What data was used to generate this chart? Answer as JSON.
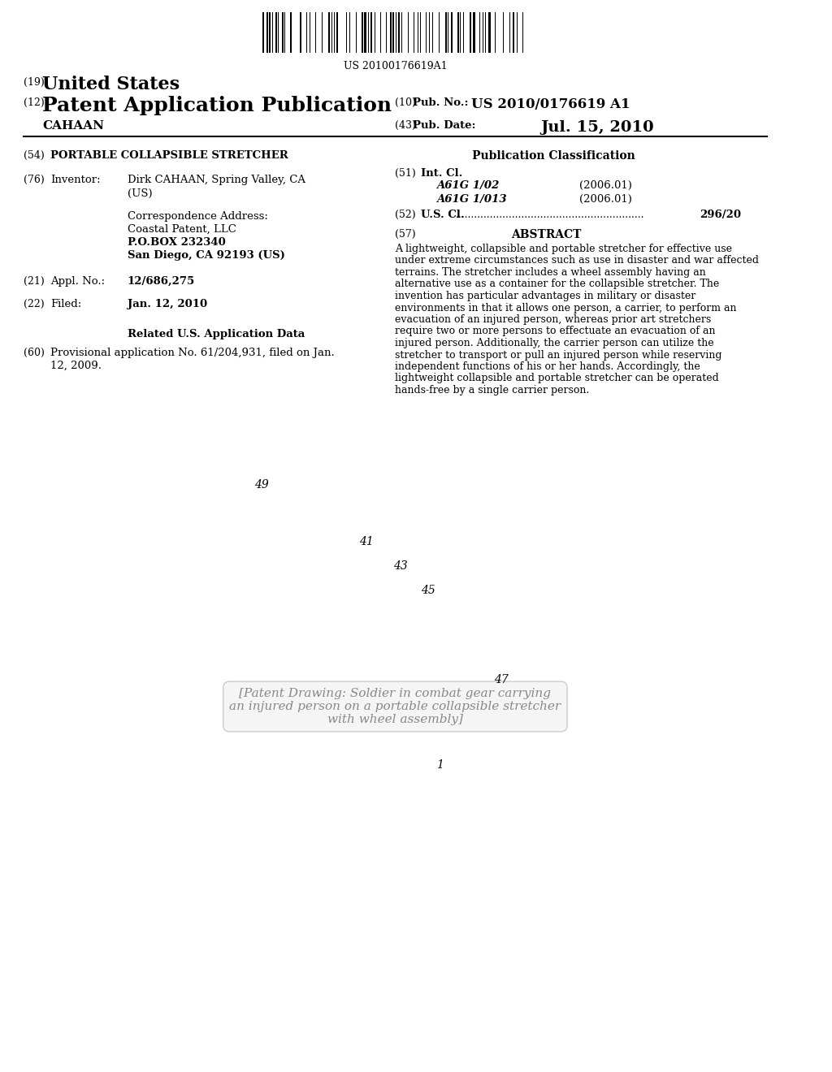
{
  "background_color": "#ffffff",
  "barcode_text": "US 20100176619A1",
  "header": {
    "label19": "(19)",
    "us_text": "United States",
    "label12": "(12)",
    "patent_text": "Patent Application Publication",
    "inventor_name": "CAHAAN",
    "label10": "(10)",
    "pub_no_label": "Pub. No.:",
    "pub_no_value": "US 2010/0176619 A1",
    "label43": "(43)",
    "pub_date_label": "Pub. Date:",
    "pub_date_value": "Jul. 15, 2010"
  },
  "left_col": {
    "label54": "(54)",
    "title": "PORTABLE COLLAPSIBLE STRETCHER",
    "label76": "(76)",
    "inventor_label": "Inventor:",
    "inventor_value": "Dirk CAHAAN, Spring Valley, CA\n(US)",
    "corr_address_label": "Correspondence Address:",
    "corr_address_lines": [
      "Coastal Patent, LLC",
      "P.O.BOX 232340",
      "San Diego, CA 92193 (US)"
    ],
    "label21": "(21)",
    "appl_label": "Appl. No.:",
    "appl_value": "12/686,275",
    "label22": "(22)",
    "filed_label": "Filed:",
    "filed_value": "Jan. 12, 2010",
    "related_title": "Related U.S. Application Data",
    "label60": "(60)",
    "provisional_text": "Provisional application No. 61/204,931, filed on Jan.\n12, 2009."
  },
  "right_col": {
    "pub_class_title": "Publication Classification",
    "label51": "(51)",
    "int_cl_label": "Int. Cl.",
    "int_cl_entries": [
      [
        "A61G 1/02",
        "(2006.01)"
      ],
      [
        "A61G 1/013",
        "(2006.01)"
      ]
    ],
    "label52": "(52)",
    "us_cl_label": "U.S. Cl.",
    "us_cl_dots": "............................................................",
    "us_cl_value": "296/20",
    "label57": "(57)",
    "abstract_title": "ABSTRACT",
    "abstract_text": "A lightweight, collapsible and portable stretcher for effective use under extreme circumstances such as use in disaster and war affected terrains. The stretcher includes a wheel assembly having an alternative use as a container for the collapsible stretcher. The invention has particular advantages in military or disaster environments in that it allows one person, a carrier, to perform an evacuation of an injured person, whereas prior art stretchers require two or more persons to effectuate an evacuation of an injured person. Additionally, the carrier person can utilize the stretcher to transport or pull an injured person while reserving independent functions of his or her hands. Accordingly, the lightweight collapsible and portable stretcher can be operated hands-free by a single carrier person."
  },
  "figure_labels": {
    "label49": "49",
    "label41": "41",
    "label43": "43",
    "label45": "45",
    "label47": "47",
    "label1": "1"
  }
}
